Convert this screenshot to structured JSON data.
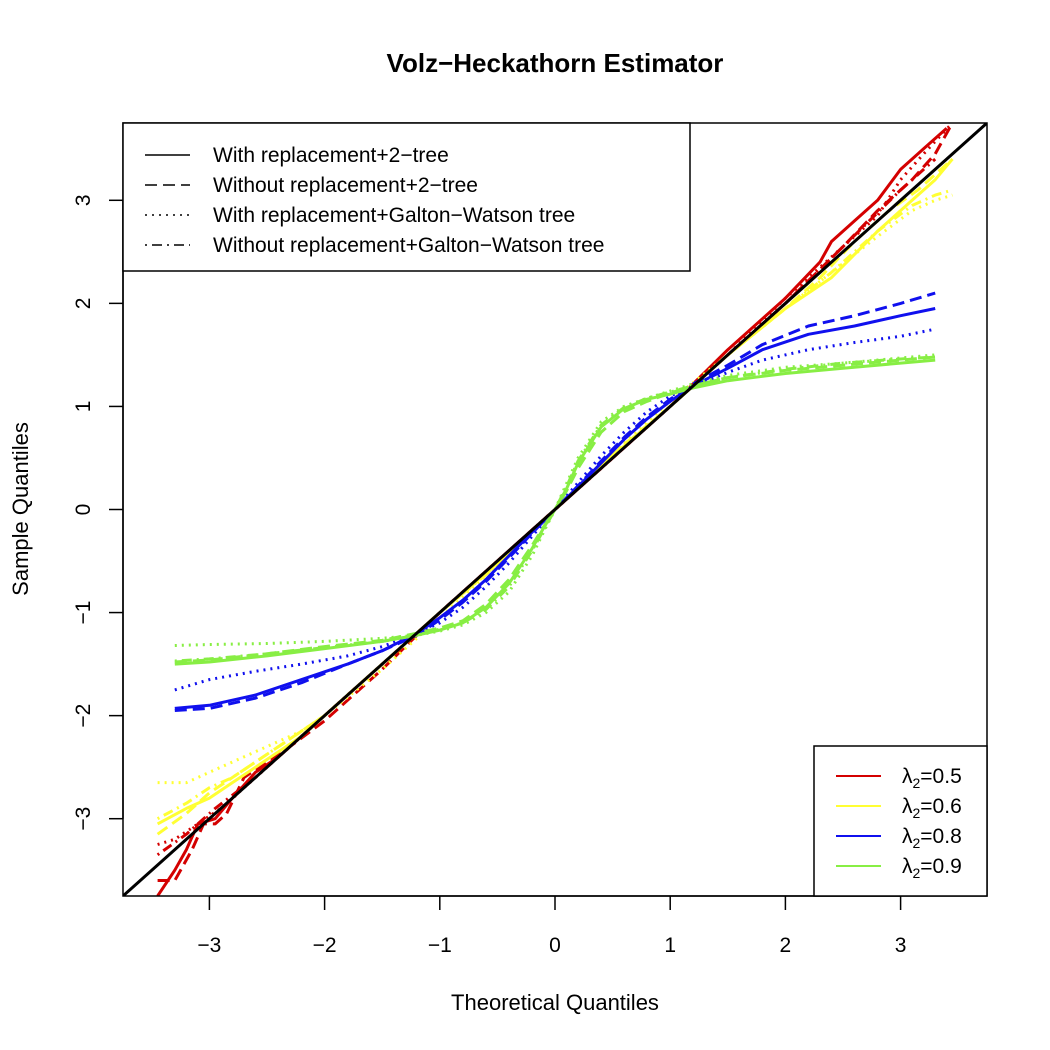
{
  "chart_data": {
    "type": "line",
    "title": "Volz−Heckathorn Estimator",
    "xlabel": "Theoretical Quantiles",
    "ylabel": "Sample Quantiles",
    "xlim": [
      -3.75,
      3.75
    ],
    "ylim": [
      -3.75,
      3.75
    ],
    "xticks": [
      -3,
      -2,
      -1,
      0,
      1,
      2,
      3
    ],
    "yticks": [
      -3,
      -2,
      -1,
      0,
      1,
      2,
      3
    ],
    "xtick_labels": [
      "−3",
      "−2",
      "−1",
      "0",
      "1",
      "2",
      "3"
    ],
    "ytick_labels": [
      "−3",
      "−2",
      "−1",
      "0",
      "1",
      "2",
      "3"
    ],
    "reference_line": {
      "name": "y = x",
      "color": "#000000",
      "slope": 1,
      "intercept": 0
    },
    "style_legend": {
      "position": "top-left",
      "entries": [
        {
          "label": "With replacement+2−tree",
          "dash": "solid"
        },
        {
          "label": "Without replacement+2−tree",
          "dash": "dashed"
        },
        {
          "label": "With replacement+Galton−Watson tree",
          "dash": "dotted"
        },
        {
          "label": "Without replacement+Galton−Watson tree",
          "dash": "dotdash"
        }
      ]
    },
    "color_legend": {
      "position": "bottom-right",
      "entries": [
        {
          "symbol": "λ",
          "subscript": "2",
          "value": "=0.5",
          "color": "#d40000"
        },
        {
          "symbol": "λ",
          "subscript": "2",
          "value": "=0.6",
          "color": "#ffff33"
        },
        {
          "symbol": "λ",
          "subscript": "2",
          "value": "=0.8",
          "color": "#1010ee"
        },
        {
          "symbol": "λ",
          "subscript": "2",
          "value": "=0.9",
          "color": "#88ee44"
        }
      ]
    },
    "series": [
      {
        "name": "λ2=0.5 with replacement+2-tree",
        "color": "#d40000",
        "dash": "solid",
        "x": [
          -3.45,
          -3.3,
          -3.2,
          -3.1,
          -2.95,
          -2.8,
          -2.6,
          -2.4,
          -2.2,
          -2,
          -1.5,
          -1,
          0,
          1,
          1.5,
          2,
          2.3,
          2.4,
          2.6,
          2.8,
          3,
          3.2,
          3.4
        ],
        "y": [
          -3.75,
          -3.5,
          -3.3,
          -3.05,
          -3.0,
          -2.8,
          -2.55,
          -2.4,
          -2.2,
          -2.0,
          -1.5,
          -1.0,
          0.0,
          1.0,
          1.55,
          2.05,
          2.4,
          2.6,
          2.8,
          3.0,
          3.3,
          3.5,
          3.7
        ]
      },
      {
        "name": "λ2=0.5 without replacement+2-tree",
        "color": "#d40000",
        "dash": "dashed",
        "x": [
          -3.45,
          -3.3,
          -3.15,
          -3.05,
          -2.95,
          -2.85,
          -2.7,
          -2.5,
          -2.3,
          -2,
          -1.5,
          -1,
          0,
          1,
          1.5,
          2,
          2.5,
          2.8,
          3.1,
          3.3,
          3.45
        ],
        "y": [
          -3.6,
          -3.6,
          -3.3,
          -3.05,
          -3.05,
          -2.95,
          -2.6,
          -2.45,
          -2.3,
          -2.05,
          -1.55,
          -1.0,
          0.0,
          1.0,
          1.5,
          2.0,
          2.55,
          2.9,
          3.2,
          3.45,
          3.75
        ]
      },
      {
        "name": "λ2=0.5 with replacement+Galton-Watson tree",
        "color": "#d40000",
        "dash": "dotted",
        "x": [
          -3.45,
          -3.3,
          -3.1,
          -2.9,
          -2.6,
          -2.3,
          -2,
          -1.5,
          -1,
          0,
          1,
          1.5,
          2,
          2.5,
          2.8,
          3.0,
          3.2,
          3.45
        ],
        "y": [
          -3.25,
          -3.2,
          -3.05,
          -2.9,
          -2.6,
          -2.3,
          -2.0,
          -1.5,
          -1.0,
          0.0,
          1.0,
          1.5,
          2.05,
          2.55,
          2.85,
          3.2,
          3.45,
          3.75
        ]
      },
      {
        "name": "λ2=0.5 without replacement+Galton-Watson tree",
        "color": "#d40000",
        "dash": "dotdash",
        "x": [
          -3.45,
          -3.2,
          -2.95,
          -2.6,
          -2.2,
          -1.8,
          -1.4,
          -1,
          0,
          1,
          1.5,
          2,
          2.5,
          3.0,
          3.3
        ],
        "y": [
          -3.35,
          -3.15,
          -2.9,
          -2.6,
          -2.2,
          -1.8,
          -1.4,
          -1.0,
          0.0,
          1.0,
          1.5,
          2.0,
          2.55,
          3.1,
          3.4
        ]
      },
      {
        "name": "λ2=0.6 with replacement+2-tree",
        "color": "#ffff33",
        "dash": "solid",
        "x": [
          -3.45,
          -3.2,
          -3.0,
          -2.8,
          -2.6,
          -2.4,
          -2.2,
          -2,
          -1.5,
          -1,
          -0.5,
          0,
          0.5,
          1,
          1.5,
          2,
          2.4,
          2.8,
          3.1,
          3.3,
          3.45
        ],
        "y": [
          -3.05,
          -2.9,
          -2.8,
          -2.65,
          -2.5,
          -2.35,
          -2.2,
          -2.0,
          -1.5,
          -1.0,
          -0.52,
          0.0,
          0.52,
          1.0,
          1.5,
          1.95,
          2.25,
          2.7,
          3.0,
          3.2,
          3.4
        ]
      },
      {
        "name": "λ2=0.6 without replacement+2-tree",
        "color": "#ffff33",
        "dash": "dashed",
        "x": [
          -3.45,
          -3.2,
          -3.0,
          -2.8,
          -2.6,
          -2.4,
          -2.2,
          -2,
          -1.5,
          -1,
          -0.5,
          0,
          0.5,
          1,
          1.5,
          2,
          2.3,
          2.6,
          2.9,
          3.15,
          3.35,
          3.45
        ],
        "y": [
          -3.15,
          -2.95,
          -2.75,
          -2.6,
          -2.45,
          -2.3,
          -2.15,
          -2.0,
          -1.5,
          -1.0,
          -0.53,
          0.0,
          0.53,
          1.0,
          1.5,
          1.95,
          2.25,
          2.6,
          2.9,
          3.1,
          3.3,
          3.4
        ]
      },
      {
        "name": "λ2=0.6 with replacement+Galton-Watson tree",
        "color": "#ffff33",
        "dash": "dotted",
        "x": [
          -3.45,
          -3.2,
          -3.0,
          -2.8,
          -2.6,
          -2.4,
          -2.2,
          -2,
          -1.5,
          -1,
          -0.5,
          0,
          0.5,
          1,
          1.5,
          2,
          2.4,
          2.8,
          3.1,
          3.3,
          3.45
        ],
        "y": [
          -2.65,
          -2.65,
          -2.55,
          -2.45,
          -2.35,
          -2.25,
          -2.15,
          -2.0,
          -1.55,
          -1.05,
          -0.55,
          0.0,
          0.55,
          1.05,
          1.5,
          1.95,
          2.3,
          2.65,
          2.9,
          3.0,
          3.05
        ]
      },
      {
        "name": "λ2=0.6 without replacement+Galton-Watson tree",
        "color": "#ffff33",
        "dash": "dotdash",
        "x": [
          -3.45,
          -3.2,
          -3.0,
          -2.8,
          -2.6,
          -2.4,
          -2.2,
          -2,
          -1.5,
          -1,
          -0.5,
          0,
          0.5,
          1,
          1.5,
          2,
          2.4,
          2.8,
          3.1,
          3.3,
          3.45
        ],
        "y": [
          -3.0,
          -2.85,
          -2.7,
          -2.6,
          -2.45,
          -2.3,
          -2.15,
          -2.0,
          -1.5,
          -1.0,
          -0.54,
          0.0,
          0.54,
          1.0,
          1.5,
          1.95,
          2.3,
          2.7,
          2.95,
          3.05,
          3.1
        ]
      },
      {
        "name": "λ2=0.8 with replacement+2-tree",
        "color": "#1010ee",
        "dash": "solid",
        "x": [
          -3.3,
          -3.0,
          -2.6,
          -2.2,
          -1.8,
          -1.5,
          -1.2,
          -1.0,
          -0.8,
          -0.6,
          -0.4,
          -0.2,
          0,
          0.2,
          0.4,
          0.6,
          0.8,
          1.0,
          1.2,
          1.5,
          1.8,
          2.2,
          2.6,
          3.0,
          3.3
        ],
        "y": [
          -1.93,
          -1.9,
          -1.8,
          -1.65,
          -1.5,
          -1.37,
          -1.2,
          -1.05,
          -0.88,
          -0.68,
          -0.45,
          -0.22,
          0.0,
          0.22,
          0.45,
          0.68,
          0.88,
          1.05,
          1.2,
          1.37,
          1.55,
          1.7,
          1.78,
          1.88,
          1.95
        ]
      },
      {
        "name": "λ2=0.8 without replacement+2-tree",
        "color": "#1010ee",
        "dash": "dashed",
        "x": [
          -3.3,
          -3.0,
          -2.6,
          -2.2,
          -1.8,
          -1.5,
          -1.2,
          -1.0,
          -0.8,
          -0.6,
          -0.4,
          -0.2,
          0,
          0.2,
          0.4,
          0.6,
          0.8,
          1.0,
          1.2,
          1.5,
          1.8,
          2.2,
          2.6,
          3.0,
          3.3
        ],
        "y": [
          -1.95,
          -1.93,
          -1.83,
          -1.68,
          -1.5,
          -1.37,
          -1.22,
          -1.07,
          -0.9,
          -0.7,
          -0.47,
          -0.23,
          0.0,
          0.23,
          0.47,
          0.7,
          0.9,
          1.07,
          1.22,
          1.4,
          1.6,
          1.78,
          1.88,
          2.0,
          2.1
        ]
      },
      {
        "name": "λ2=0.8 with replacement+Galton-Watson tree",
        "color": "#1010ee",
        "dash": "dotted",
        "x": [
          -3.3,
          -3.0,
          -2.6,
          -2.2,
          -1.8,
          -1.5,
          -1.2,
          -1.0,
          -0.8,
          -0.6,
          -0.4,
          -0.2,
          0,
          0.2,
          0.4,
          0.6,
          0.8,
          1.0,
          1.2,
          1.5,
          1.8,
          2.2,
          2.6,
          3.0,
          3.3
        ],
        "y": [
          -1.75,
          -1.65,
          -1.57,
          -1.5,
          -1.42,
          -1.33,
          -1.2,
          -1.1,
          -0.95,
          -0.75,
          -0.52,
          -0.26,
          0.0,
          0.26,
          0.52,
          0.75,
          0.95,
          1.1,
          1.2,
          1.33,
          1.45,
          1.55,
          1.62,
          1.68,
          1.75
        ]
      },
      {
        "name": "λ2=0.9 with replacement+2-tree",
        "color": "#88ee44",
        "dash": "solid",
        "x": [
          -3.3,
          -3.0,
          -2.5,
          -2.0,
          -1.5,
          -1.2,
          -1.0,
          -0.8,
          -0.6,
          -0.4,
          -0.2,
          -0.1,
          0,
          0.1,
          0.2,
          0.4,
          0.6,
          0.8,
          1.0,
          1.2,
          1.5,
          2.0,
          2.5,
          3.0,
          3.3
        ],
        "y": [
          -1.5,
          -1.48,
          -1.42,
          -1.35,
          -1.28,
          -1.22,
          -1.17,
          -1.1,
          -0.95,
          -0.72,
          -0.38,
          -0.18,
          0.0,
          0.2,
          0.45,
          0.8,
          0.98,
          1.07,
          1.12,
          1.18,
          1.25,
          1.32,
          1.37,
          1.42,
          1.45
        ]
      },
      {
        "name": "λ2=0.9 without replacement+2-tree",
        "color": "#88ee44",
        "dash": "dashed",
        "x": [
          -3.3,
          -3.0,
          -2.5,
          -2.0,
          -1.5,
          -1.2,
          -1.0,
          -0.8,
          -0.6,
          -0.4,
          -0.2,
          -0.1,
          0,
          0.1,
          0.2,
          0.4,
          0.6,
          0.8,
          1.0,
          1.2,
          1.5,
          2.0,
          2.5,
          3.0,
          3.3
        ],
        "y": [
          -1.48,
          -1.46,
          -1.4,
          -1.33,
          -1.27,
          -1.2,
          -1.15,
          -1.08,
          -0.92,
          -0.68,
          -0.35,
          -0.17,
          0.0,
          0.18,
          0.4,
          0.75,
          0.95,
          1.05,
          1.13,
          1.2,
          1.28,
          1.35,
          1.4,
          1.45,
          1.48
        ]
      },
      {
        "name": "λ2=0.9 with replacement+Galton-Watson tree",
        "color": "#88ee44",
        "dash": "dotted",
        "x": [
          -3.3,
          -3.0,
          -2.5,
          -2.0,
          -1.5,
          -1.2,
          -1.0,
          -0.8,
          -0.6,
          -0.4,
          -0.2,
          -0.1,
          0,
          0.1,
          0.2,
          0.4,
          0.6,
          0.8,
          1.0,
          1.2,
          1.5,
          2.0,
          2.5,
          3.0,
          3.3
        ],
        "y": [
          -1.32,
          -1.31,
          -1.3,
          -1.28,
          -1.25,
          -1.22,
          -1.18,
          -1.12,
          -1.0,
          -0.8,
          -0.45,
          -0.22,
          0.0,
          0.25,
          0.5,
          0.85,
          1.0,
          1.08,
          1.15,
          1.22,
          1.3,
          1.38,
          1.42,
          1.47,
          1.5
        ]
      },
      {
        "name": "λ2=0.9 without replacement+Galton-Watson tree",
        "color": "#88ee44",
        "dash": "dotdash",
        "x": [
          -3.3,
          -3.0,
          -2.5,
          -2.0,
          -1.5,
          -1.2,
          -1.0,
          -0.8,
          -0.6,
          -0.4,
          -0.2,
          -0.1,
          0,
          0.1,
          0.2,
          0.4,
          0.6,
          0.8,
          1.0,
          1.2,
          1.5,
          2.0,
          2.5,
          3.0,
          3.3
        ],
        "y": [
          -1.47,
          -1.45,
          -1.4,
          -1.34,
          -1.28,
          -1.22,
          -1.16,
          -1.1,
          -0.97,
          -0.75,
          -0.4,
          -0.2,
          0.0,
          0.22,
          0.47,
          0.82,
          0.99,
          1.08,
          1.14,
          1.2,
          1.28,
          1.36,
          1.42,
          1.46,
          1.48
        ]
      }
    ]
  }
}
